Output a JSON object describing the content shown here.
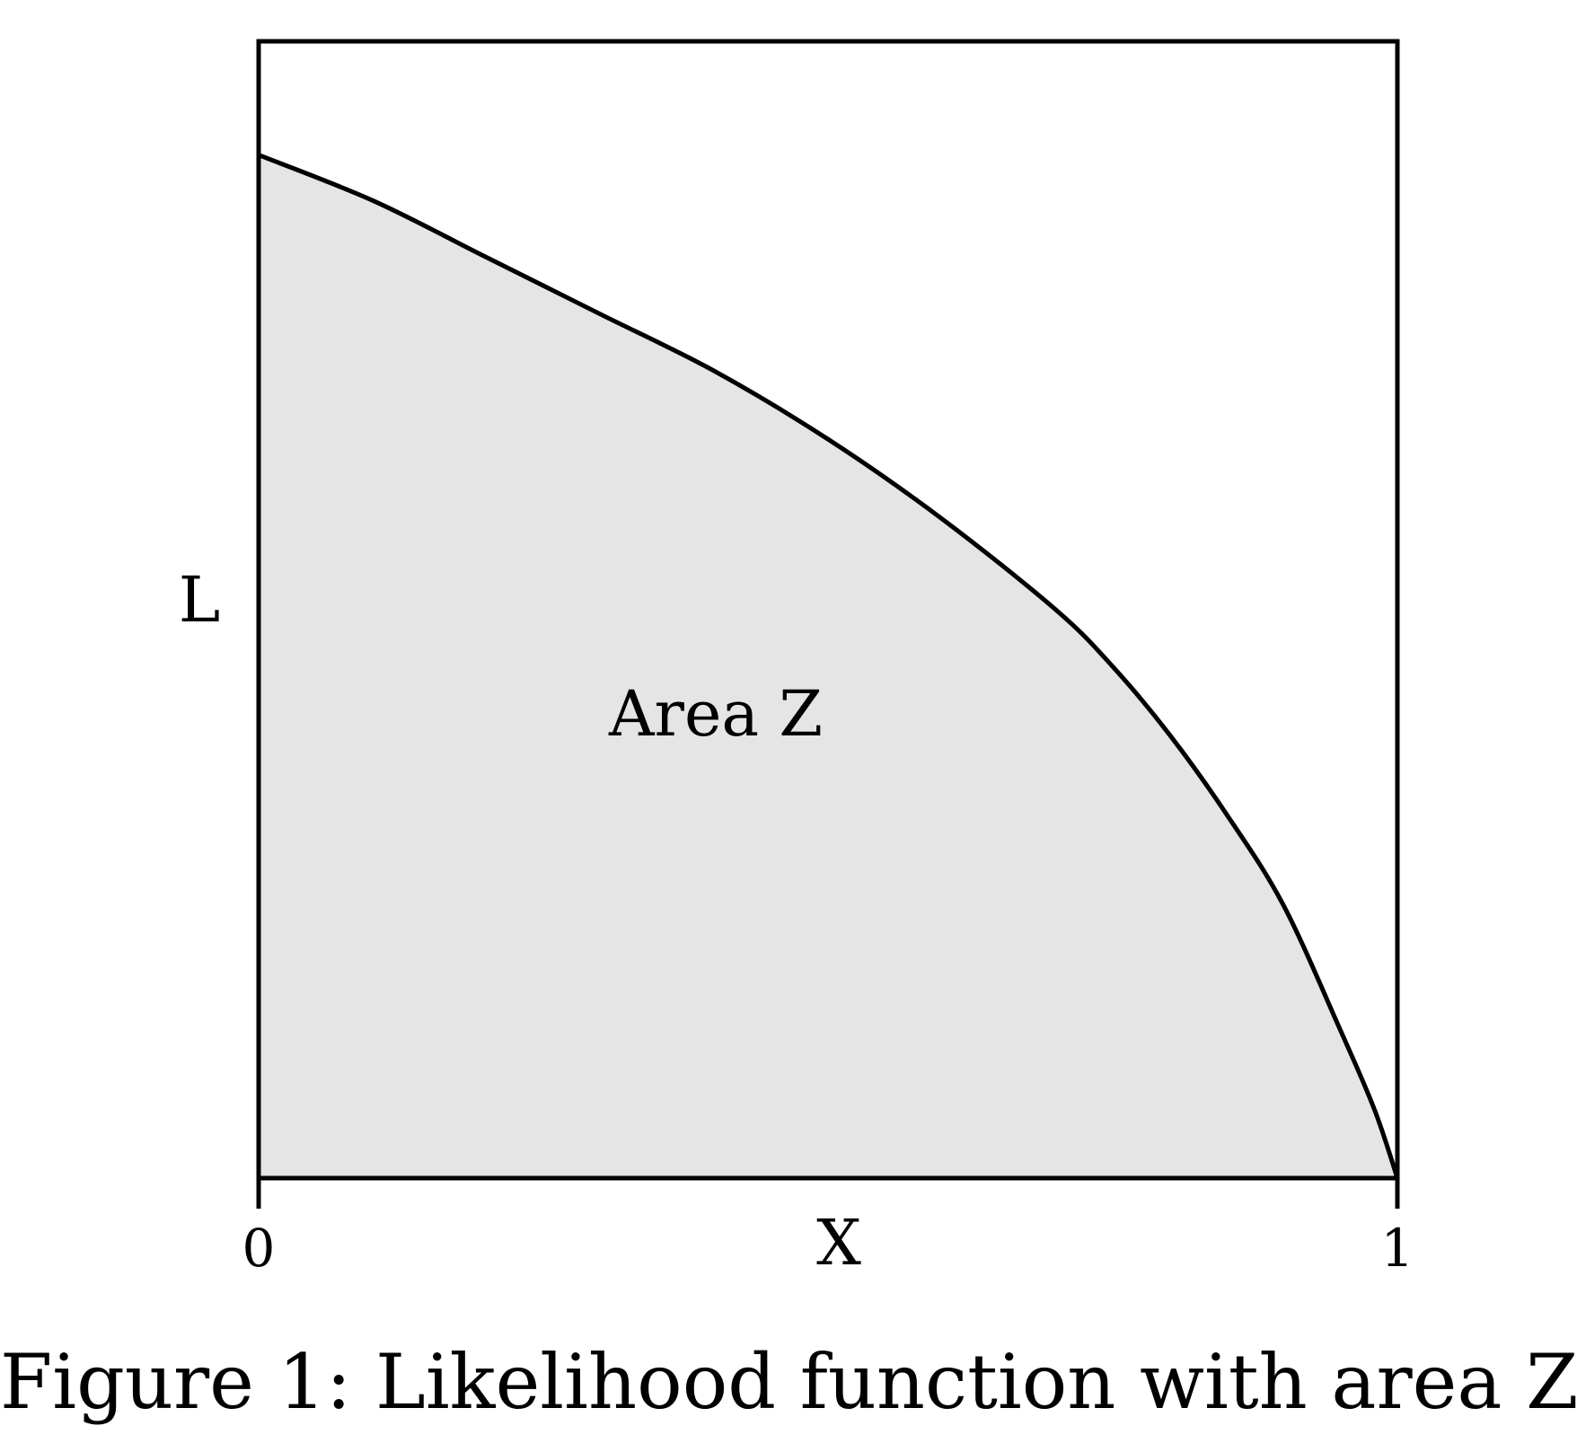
{
  "chart_data": {
    "type": "area",
    "ylabel": "L",
    "xlabel": "X",
    "x_tick_labels": [
      "0",
      "1"
    ],
    "xlim": [
      0,
      1
    ],
    "ylim": [
      0,
      1
    ],
    "annotation": "Area Z",
    "x": [
      0,
      0.1,
      0.2,
      0.3,
      0.4,
      0.5,
      0.6,
      0.7,
      0.75,
      0.8,
      0.85,
      0.9,
      0.95,
      0.98,
      1.0
    ],
    "y": [
      0.9,
      0.86,
      0.81,
      0.76,
      0.71,
      0.65,
      0.58,
      0.5,
      0.45,
      0.39,
      0.32,
      0.24,
      0.13,
      0.06,
      0
    ],
    "fill_color": "#e5e5e5",
    "line_color": "#000000",
    "grid": false
  },
  "caption": "Figure 1: Likelihood function with area Z."
}
